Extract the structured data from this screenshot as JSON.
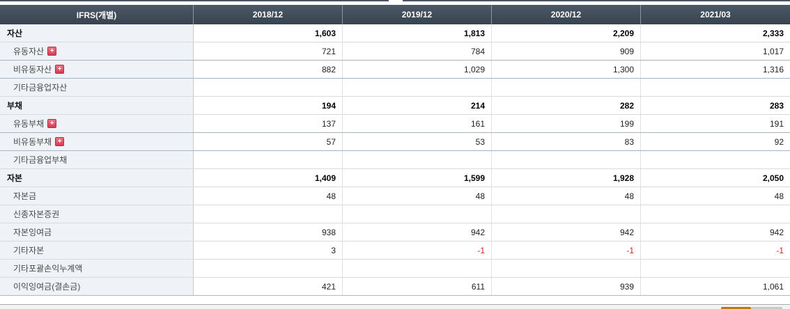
{
  "table": {
    "header": {
      "label": "IFRS(개별)",
      "periods": [
        "2018/12",
        "2019/12",
        "2020/12",
        "2021/03"
      ]
    },
    "rows": [
      {
        "label": "자산",
        "type": "section",
        "expandable": false,
        "values": [
          "1,603",
          "1,813",
          "2,209",
          "2,333"
        ]
      },
      {
        "label": "유동자산",
        "type": "item",
        "expandable": true,
        "values": [
          "721",
          "784",
          "909",
          "1,017"
        ]
      },
      {
        "label": "비유동자산",
        "type": "item",
        "expandable": true,
        "values": [
          "882",
          "1,029",
          "1,300",
          "1,316"
        ]
      },
      {
        "label": "기타금융업자산",
        "type": "item",
        "expandable": false,
        "values": [
          "",
          "",
          "",
          ""
        ]
      },
      {
        "label": "부채",
        "type": "section",
        "expandable": false,
        "values": [
          "194",
          "214",
          "282",
          "283"
        ]
      },
      {
        "label": "유동부채",
        "type": "item",
        "expandable": true,
        "values": [
          "137",
          "161",
          "199",
          "191"
        ]
      },
      {
        "label": "비유동부채",
        "type": "item",
        "expandable": true,
        "values": [
          "57",
          "53",
          "83",
          "92"
        ]
      },
      {
        "label": "기타금융업부채",
        "type": "item",
        "expandable": false,
        "values": [
          "",
          "",
          "",
          ""
        ]
      },
      {
        "label": "자본",
        "type": "section",
        "expandable": false,
        "values": [
          "1,409",
          "1,599",
          "1,928",
          "2,050"
        ]
      },
      {
        "label": "자본금",
        "type": "item",
        "expandable": false,
        "values": [
          "48",
          "48",
          "48",
          "48"
        ]
      },
      {
        "label": "신종자본증권",
        "type": "item",
        "expandable": false,
        "values": [
          "",
          "",
          "",
          ""
        ]
      },
      {
        "label": "자본잉여금",
        "type": "item",
        "expandable": false,
        "values": [
          "938",
          "942",
          "942",
          "942"
        ]
      },
      {
        "label": "기타자본",
        "type": "item",
        "expandable": false,
        "values": [
          "3",
          "-1",
          "-1",
          "-1"
        ]
      },
      {
        "label": "기타포괄손익누계액",
        "type": "item",
        "expandable": false,
        "values": [
          "",
          "",
          "",
          ""
        ]
      },
      {
        "label": "이익잉여금(결손금)",
        "type": "item",
        "expandable": false,
        "values": [
          "421",
          "611",
          "939",
          "1,061"
        ]
      }
    ]
  },
  "icons": {
    "expand": "plus-icon"
  },
  "colors": {
    "header_bg": "#3d4a59",
    "header_text": "#ffffff",
    "label_column_bg": "#eff2f6",
    "negative_value": "#e01b1b",
    "expand_icon_red": "#dd4b5f",
    "bottom_button_orange": "#c1770b"
  }
}
